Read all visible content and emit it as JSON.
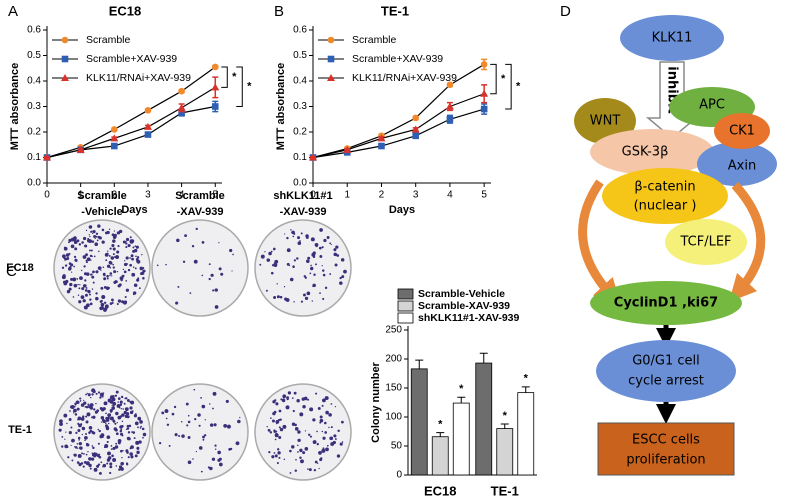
{
  "chart_data": [
    {
      "type": "line",
      "panel": "A",
      "title": "EC18",
      "xlabel": "Days",
      "ylabel": "MTT absorbance",
      "x": [
        0,
        1,
        2,
        3,
        4,
        5
      ],
      "xlim": [
        0,
        5.2
      ],
      "xticks": [
        0,
        1,
        2,
        3,
        4,
        5
      ],
      "ylim": [
        0,
        0.6
      ],
      "yticks": [
        {
          "value": 0,
          "label": "0.0"
        },
        0.1,
        0.2,
        0.3,
        0.4,
        0.5,
        0.6
      ],
      "series": [
        {
          "name": "Scramble",
          "color": "#f0892b",
          "marker": "circle",
          "values": [
            0.1,
            0.14,
            0.21,
            0.285,
            0.36,
            0.455
          ],
          "errors": [
            0.003,
            0.004,
            0.005,
            0.005,
            0.006,
            0.006
          ]
        },
        {
          "name": "Scramble+XAV-939",
          "color": "#2f5fb3",
          "marker": "square",
          "values": [
            0.1,
            0.13,
            0.145,
            0.19,
            0.275,
            0.3
          ],
          "errors": [
            0.003,
            0.004,
            0.004,
            0.006,
            0.012,
            0.02
          ]
        },
        {
          "name": "KLK11/RNAi+XAV-939",
          "color": "#d9322b",
          "marker": "triangle",
          "values": [
            0.1,
            0.13,
            0.175,
            0.22,
            0.295,
            0.375
          ],
          "errors": [
            0.003,
            0.004,
            0.005,
            0.006,
            0.015,
            0.04
          ]
        }
      ],
      "annotations": [
        "*",
        "*"
      ]
    },
    {
      "type": "line",
      "panel": "B",
      "title": "TE-1",
      "xlabel": "Days",
      "ylabel": "MTT absorbance",
      "x": [
        0,
        1,
        2,
        3,
        4,
        5
      ],
      "xlim": [
        0,
        5.2
      ],
      "xticks": [
        0,
        1,
        2,
        3,
        4,
        5
      ],
      "ylim": [
        0,
        0.6
      ],
      "yticks": [
        {
          "value": 0,
          "label": "0.0"
        },
        0.1,
        0.2,
        0.3,
        0.4,
        0.5,
        0.6
      ],
      "series": [
        {
          "name": "Scramble",
          "color": "#f0892b",
          "marker": "circle",
          "values": [
            0.1,
            0.135,
            0.185,
            0.255,
            0.385,
            0.465
          ],
          "errors": [
            0.003,
            0.004,
            0.006,
            0.006,
            0.006,
            0.02
          ]
        },
        {
          "name": "Scramble+XAV-939",
          "color": "#2f5fb3",
          "marker": "square",
          "values": [
            0.1,
            0.12,
            0.145,
            0.185,
            0.25,
            0.29
          ],
          "errors": [
            0.003,
            0.004,
            0.005,
            0.006,
            0.015,
            0.02
          ]
        },
        {
          "name": "KLK11/RNAi+XAV-939",
          "color": "#d9322b",
          "marker": "triangle",
          "values": [
            0.1,
            0.13,
            0.175,
            0.21,
            0.3,
            0.35
          ],
          "errors": [
            0.003,
            0.004,
            0.006,
            0.006,
            0.015,
            0.035
          ]
        }
      ],
      "annotations": [
        "*",
        "*"
      ]
    },
    {
      "type": "bar",
      "panel": "C",
      "ylabel": "Colony number",
      "categories": [
        "EC18",
        "TE-1"
      ],
      "ylim": [
        0,
        250
      ],
      "yticks": [
        0,
        50,
        100,
        150,
        200,
        250
      ],
      "series": [
        {
          "name": "Scramble-Vehicle",
          "color": "#6d6d6d",
          "values": [
            183,
            193
          ],
          "errors": [
            15,
            17
          ]
        },
        {
          "name": "Scramble-XAV-939",
          "color": "#d4d4d4",
          "values": [
            66,
            80
          ],
          "errors": [
            7,
            8
          ],
          "annotations": [
            "*",
            "*"
          ]
        },
        {
          "name": "shKLK11#1-XAV-939",
          "color": "#ffffff",
          "values": [
            124,
            142
          ],
          "errors": [
            10,
            10
          ],
          "annotations": [
            "*",
            "*"
          ]
        }
      ]
    }
  ],
  "photos": {
    "columns": [
      [
        "Scramble",
        "-Vehicle"
      ],
      [
        "Scramble",
        "-XAV-939"
      ],
      [
        "shKLK11#1",
        "-XAV-939"
      ]
    ],
    "rows": [
      "EC18",
      "TE-1"
    ]
  },
  "diagram": {
    "panel": "D",
    "nodes": {
      "klk11": "KLK11",
      "inhibit": "inhibit",
      "wnt": "WNT",
      "apc": "APC",
      "ck1": "CK1",
      "gsk": "GSK-3β",
      "axin": "Axin",
      "catenin": [
        "β-catenin",
        "(nuclear )"
      ],
      "tcf": "TCF/LEF",
      "cyclin": "CyclinD1 ,ki67",
      "arrest": [
        "G0/G1 cell",
        "cycle arrest"
      ],
      "escc": [
        "ESCC cells",
        "proliferation"
      ]
    }
  }
}
